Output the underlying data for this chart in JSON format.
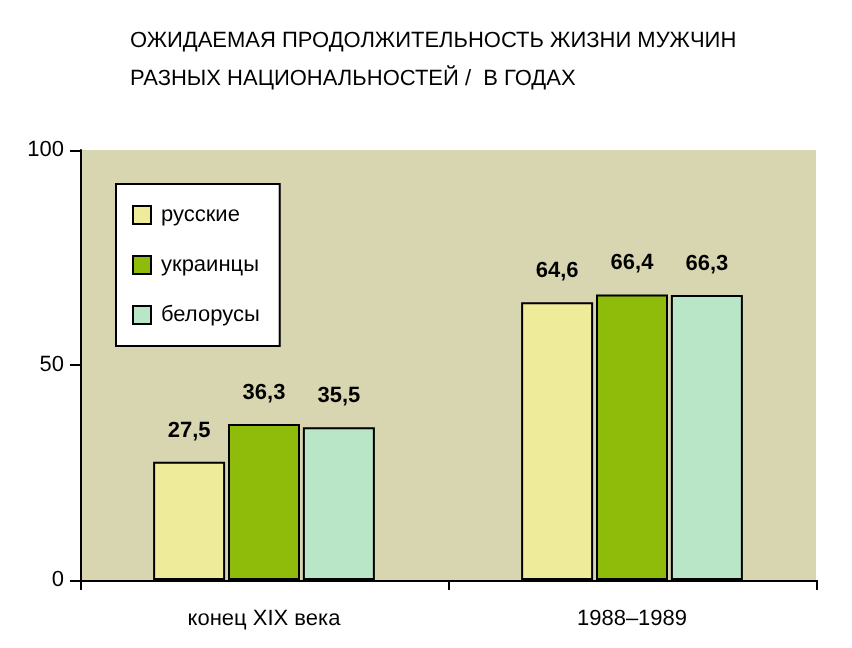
{
  "chart_data": {
    "type": "bar",
    "title": "ОЖИДАЕМАЯ ПРОДОЛЖИТЕЛЬНОСТЬ ЖИЗНИ МУЖЧИН\nРАЗНЫХ НАЦИОНАЛЬНОСТЕЙ /  В ГОДАХ",
    "categories": [
      "конец XIX века",
      "1988–1989"
    ],
    "series": [
      {
        "name": "русские",
        "color": "#eeeb9a",
        "values": [
          27.5,
          64.6
        ],
        "value_labels": [
          "27,5",
          "64,6"
        ]
      },
      {
        "name": "украинцы",
        "color": "#8fbc0a",
        "values": [
          36.3,
          66.4
        ],
        "value_labels": [
          "36,3",
          "66,4"
        ]
      },
      {
        "name": "белорусы",
        "color": "#b9e6c6",
        "values": [
          35.5,
          66.3
        ],
        "value_labels": [
          "35,5",
          "66,3"
        ]
      }
    ],
    "ylim": [
      0,
      100
    ],
    "yticks": [
      0,
      50,
      100
    ],
    "grid": false,
    "legend": "top left"
  }
}
